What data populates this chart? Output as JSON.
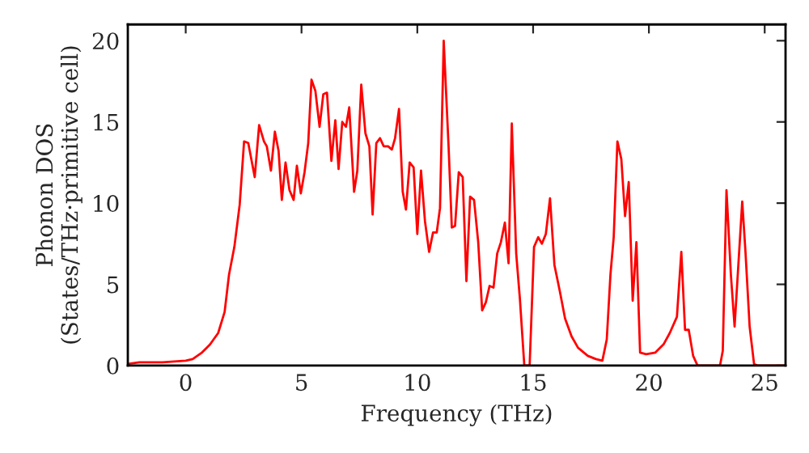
{
  "chart_data": {
    "type": "line",
    "xlabel": "Frequency (THz)",
    "ylabel": "Phonon DOS\n(States/THz·primitive cell)",
    "xlim": [
      -2.5,
      25.9
    ],
    "ylim": [
      0,
      21
    ],
    "xticks": [
      0,
      5,
      10,
      15,
      20,
      25
    ],
    "yticks": [
      0,
      5,
      10,
      15,
      20
    ],
    "grid": false,
    "marker": "none",
    "line_style": "solid",
    "series": [
      {
        "color": "#ff0000",
        "x": [
          -2.5,
          -2.0,
          -1.0,
          0.0,
          0.3,
          0.7,
          1.05,
          1.4,
          1.68,
          1.87,
          2.1,
          2.33,
          2.52,
          2.7,
          2.98,
          3.17,
          3.38,
          3.5,
          3.68,
          3.85,
          4.01,
          4.15,
          4.31,
          4.48,
          4.66,
          4.8,
          4.97,
          5.13,
          5.29,
          5.43,
          5.6,
          5.78,
          5.94,
          6.1,
          6.29,
          6.46,
          6.6,
          6.76,
          6.92,
          7.06,
          7.27,
          7.41,
          7.58,
          7.76,
          7.93,
          8.07,
          8.23,
          8.39,
          8.55,
          8.74,
          8.9,
          9.04,
          9.21,
          9.37,
          9.51,
          9.67,
          9.84,
          10.0,
          10.16,
          10.33,
          10.51,
          10.68,
          10.84,
          10.98,
          11.14,
          11.35,
          11.49,
          11.63,
          11.79,
          11.96,
          12.12,
          12.28,
          12.45,
          12.63,
          12.8,
          12.96,
          13.12,
          13.29,
          13.45,
          13.61,
          13.78,
          13.94,
          14.08,
          14.27,
          14.43,
          14.62,
          14.85,
          15.04,
          15.22,
          15.38,
          15.55,
          15.73,
          15.92,
          16.15,
          16.38,
          16.66,
          16.94,
          17.36,
          17.71,
          17.99,
          18.18,
          18.34,
          18.48,
          18.64,
          18.81,
          18.97,
          19.13,
          19.3,
          19.46,
          19.62,
          19.88,
          20.28,
          20.63,
          20.9,
          21.21,
          21.4,
          21.56,
          21.72,
          21.91,
          22.1,
          23.07,
          23.19,
          23.35,
          23.54,
          23.7,
          24.03,
          24.17,
          24.35,
          24.54,
          24.7,
          25.9
        ],
        "values": [
          0.1,
          0.2,
          0.2,
          0.3,
          0.4,
          0.8,
          1.3,
          2.0,
          3.3,
          5.6,
          7.3,
          9.9,
          13.8,
          13.7,
          11.6,
          14.8,
          13.8,
          13.5,
          12.0,
          14.4,
          13.2,
          10.2,
          12.5,
          10.8,
          10.2,
          12.3,
          10.6,
          11.9,
          13.7,
          17.6,
          16.9,
          14.7,
          16.7,
          16.8,
          12.6,
          15.1,
          12.1,
          15.0,
          14.7,
          15.9,
          10.7,
          12.0,
          17.3,
          14.3,
          13.5,
          9.3,
          13.7,
          14.0,
          13.5,
          13.5,
          13.3,
          14.0,
          15.8,
          10.7,
          9.6,
          12.5,
          12.2,
          8.1,
          12.0,
          8.9,
          7.0,
          8.2,
          8.2,
          9.7,
          20.0,
          13.5,
          8.5,
          8.6,
          11.9,
          11.6,
          5.2,
          10.4,
          10.2,
          7.6,
          3.4,
          3.9,
          4.9,
          4.8,
          6.9,
          7.6,
          8.8,
          6.3,
          14.9,
          6.9,
          4.1,
          0.0,
          0.0,
          7.3,
          7.9,
          7.5,
          8.1,
          10.3,
          6.2,
          4.6,
          2.9,
          1.8,
          1.1,
          0.6,
          0.4,
          0.3,
          1.6,
          5.6,
          7.9,
          13.8,
          12.7,
          9.2,
          11.3,
          4.0,
          7.6,
          0.8,
          0.7,
          0.8,
          1.3,
          2.0,
          3.0,
          7.0,
          2.2,
          2.2,
          0.6,
          0.0,
          0.0,
          0.9,
          10.8,
          5.6,
          2.4,
          10.1,
          7.0,
          2.4,
          0.1,
          0.0,
          0.0
        ]
      }
    ]
  }
}
